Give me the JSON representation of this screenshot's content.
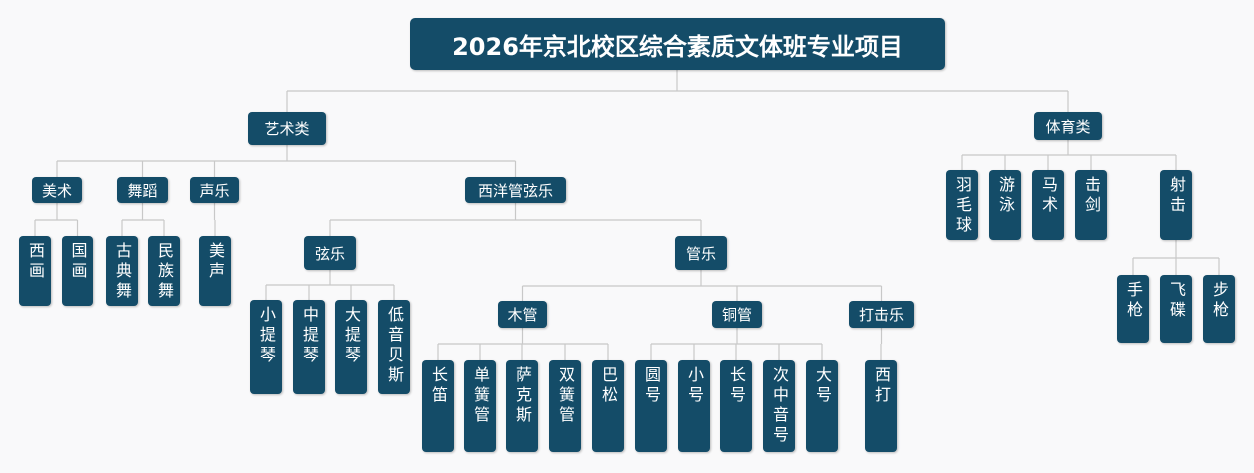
{
  "title": "2026年京北校区综合素质文体班专业项目",
  "tree": [
    {
      "label": "艺术类",
      "children": [
        {
          "label": "美术",
          "children": [
            {
              "label": "西画"
            },
            {
              "label": "国画"
            }
          ]
        },
        {
          "label": "舞蹈",
          "children": [
            {
              "label": "古典舞"
            },
            {
              "label": "民族舞"
            }
          ]
        },
        {
          "label": "声乐",
          "children": [
            {
              "label": "美声"
            }
          ]
        },
        {
          "label": "西洋管弦乐",
          "children": [
            {
              "label": "弦乐",
              "children": [
                {
                  "label": "小提琴"
                },
                {
                  "label": "中提琴"
                },
                {
                  "label": "大提琴"
                },
                {
                  "label": "低音贝斯"
                }
              ]
            },
            {
              "label": "管乐",
              "children": [
                {
                  "label": "木管",
                  "children": [
                    {
                      "label": "长笛"
                    },
                    {
                      "label": "单簧管"
                    },
                    {
                      "label": "萨克斯"
                    },
                    {
                      "label": "双簧管"
                    },
                    {
                      "label": "巴松"
                    }
                  ]
                },
                {
                  "label": "铜管",
                  "children": [
                    {
                      "label": "圆号"
                    },
                    {
                      "label": "小号"
                    },
                    {
                      "label": "长号"
                    },
                    {
                      "label": "次中音号"
                    },
                    {
                      "label": "大号"
                    }
                  ]
                },
                {
                  "label": "打击乐",
                  "children": [
                    {
                      "label": "西打"
                    }
                  ]
                }
              ]
            }
          ]
        }
      ]
    },
    {
      "label": "体育类",
      "children": [
        {
          "label": "羽毛球"
        },
        {
          "label": "游泳"
        },
        {
          "label": "马术"
        },
        {
          "label": "击剑"
        },
        {
          "label": "射击",
          "children": [
            {
              "label": "手枪"
            },
            {
              "label": "飞碟"
            },
            {
              "label": "步枪"
            }
          ]
        }
      ]
    }
  ]
}
